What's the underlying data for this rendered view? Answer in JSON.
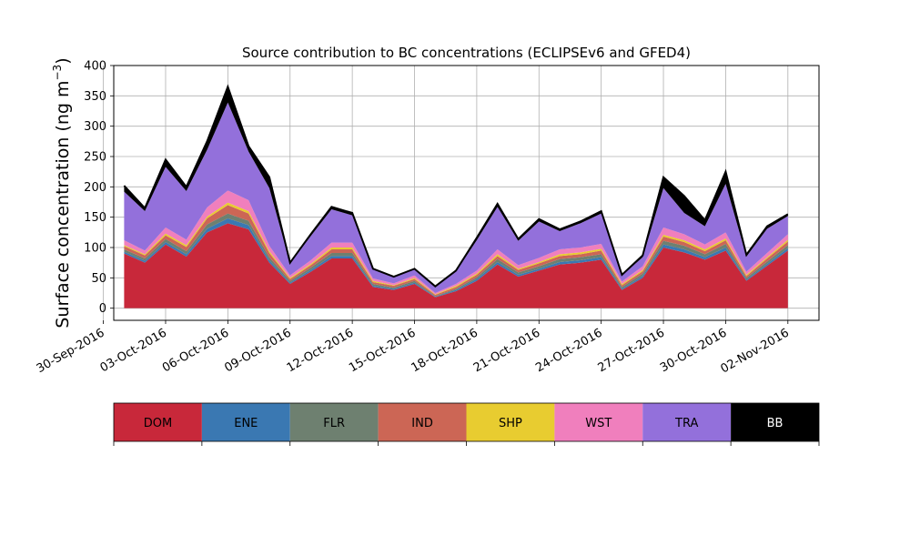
{
  "chart_data": {
    "type": "area",
    "stacked": true,
    "title": "Source contribution to BC concentrations (ECLIPSEv6 and GFED4)",
    "ylabel_main": "Surface concentration (ng m",
    "ylabel_sup": "−3",
    "ylabel_close": ")",
    "xlabel": "",
    "ylim": [
      -20,
      400
    ],
    "yticks": [
      0,
      50,
      100,
      150,
      200,
      250,
      300,
      350,
      400
    ],
    "xlim": [
      "2016-09-30T12:00",
      "2016-11-03T12:00"
    ],
    "xticks": [
      "30-Sep-2016",
      "03-Oct-2016",
      "06-Oct-2016",
      "09-Oct-2016",
      "12-Oct-2016",
      "15-Oct-2016",
      "18-Oct-2016",
      "21-Oct-2016",
      "24-Oct-2016",
      "27-Oct-2016",
      "30-Oct-2016",
      "02-Nov-2016"
    ],
    "grid": true,
    "legend_placement": "below",
    "colors": {
      "DOM": "#c8283a",
      "ENE": "#3a78b2",
      "FLR": "#6e8070",
      "IND": "#cc6655",
      "SHP": "#e8cc30",
      "WST": "#f07fbd",
      "TRA": "#9370db",
      "BB": "#000000"
    },
    "x": [
      "2016-10-01",
      "2016-10-02",
      "2016-10-03",
      "2016-10-04",
      "2016-10-05",
      "2016-10-06",
      "2016-10-07",
      "2016-10-08",
      "2016-10-09",
      "2016-10-10",
      "2016-10-11",
      "2016-10-12",
      "2016-10-13",
      "2016-10-14",
      "2016-10-15",
      "2016-10-16",
      "2016-10-17",
      "2016-10-18",
      "2016-10-19",
      "2016-10-20",
      "2016-10-21",
      "2016-10-22",
      "2016-10-23",
      "2016-10-24",
      "2016-10-25",
      "2016-10-26",
      "2016-10-27",
      "2016-10-28",
      "2016-10-29",
      "2016-10-30",
      "2016-10-31",
      "2016-11-01",
      "2016-11-02"
    ],
    "series": [
      {
        "name": "DOM",
        "values": [
          90,
          75,
          105,
          85,
          125,
          140,
          130,
          75,
          40,
          60,
          82,
          82,
          35,
          30,
          40,
          18,
          28,
          45,
          72,
          52,
          62,
          72,
          75,
          80,
          30,
          50,
          100,
          92,
          80,
          95,
          45,
          70,
          95
        ]
      },
      {
        "name": "ENE",
        "values": [
          3,
          3,
          4,
          4,
          6,
          8,
          7,
          4,
          2,
          3,
          4,
          4,
          2,
          2,
          2,
          1,
          2,
          3,
          4,
          3,
          3,
          4,
          4,
          4,
          2,
          3,
          5,
          5,
          4,
          5,
          2,
          3,
          4
        ]
      },
      {
        "name": "FLR",
        "values": [
          4,
          4,
          5,
          5,
          7,
          8,
          7,
          5,
          3,
          4,
          5,
          5,
          3,
          2,
          3,
          1,
          2,
          3,
          5,
          4,
          4,
          5,
          5,
          5,
          3,
          4,
          6,
          6,
          5,
          6,
          3,
          4,
          5
        ]
      },
      {
        "name": "IND",
        "values": [
          5,
          5,
          6,
          7,
          10,
          14,
          12,
          7,
          3,
          4,
          6,
          6,
          3,
          3,
          3,
          2,
          3,
          4,
          5,
          4,
          5,
          5,
          5,
          6,
          3,
          4,
          7,
          6,
          5,
          6,
          3,
          5,
          6
        ]
      },
      {
        "name": "SHP",
        "values": [
          2,
          2,
          3,
          3,
          3,
          4,
          4,
          3,
          2,
          2,
          3,
          3,
          2,
          1,
          2,
          1,
          2,
          2,
          3,
          2,
          2,
          3,
          3,
          3,
          2,
          2,
          3,
          3,
          3,
          3,
          2,
          2,
          3
        ]
      },
      {
        "name": "WST",
        "values": [
          8,
          6,
          10,
          9,
          15,
          20,
          18,
          9,
          4,
          6,
          8,
          8,
          4,
          3,
          4,
          2,
          3,
          5,
          8,
          6,
          7,
          8,
          8,
          8,
          4,
          6,
          12,
          10,
          8,
          10,
          5,
          7,
          9
        ]
      },
      {
        "name": "TRA",
        "values": [
          80,
          65,
          100,
          80,
          95,
          145,
          80,
          95,
          20,
          40,
          55,
          45,
          15,
          10,
          10,
          10,
          20,
          50,
          70,
          40,
          60,
          30,
          40,
          50,
          10,
          15,
          65,
          35,
          30,
          80,
          25,
          40,
          30
        ]
      },
      {
        "name": "BB",
        "values": [
          10,
          5,
          12,
          7,
          14,
          26,
          9,
          18,
          1,
          3,
          4,
          4,
          1,
          1,
          1,
          1,
          2,
          4,
          5,
          3,
          4,
          3,
          3,
          4,
          1,
          3,
          18,
          28,
          10,
          20,
          3,
          4,
          3
        ]
      }
    ]
  },
  "legend": {
    "items": [
      {
        "label": "DOM",
        "color": "#c8283a",
        "text_color": "#000000"
      },
      {
        "label": "ENE",
        "color": "#3a78b2",
        "text_color": "#000000"
      },
      {
        "label": "FLR",
        "color": "#6e8070",
        "text_color": "#000000"
      },
      {
        "label": "IND",
        "color": "#cc6655",
        "text_color": "#000000"
      },
      {
        "label": "SHP",
        "color": "#e8cc30",
        "text_color": "#000000"
      },
      {
        "label": "WST",
        "color": "#f07fbd",
        "text_color": "#000000"
      },
      {
        "label": "TRA",
        "color": "#9370db",
        "text_color": "#000000"
      },
      {
        "label": "BB",
        "color": "#000000",
        "text_color": "#ffffff"
      }
    ]
  }
}
